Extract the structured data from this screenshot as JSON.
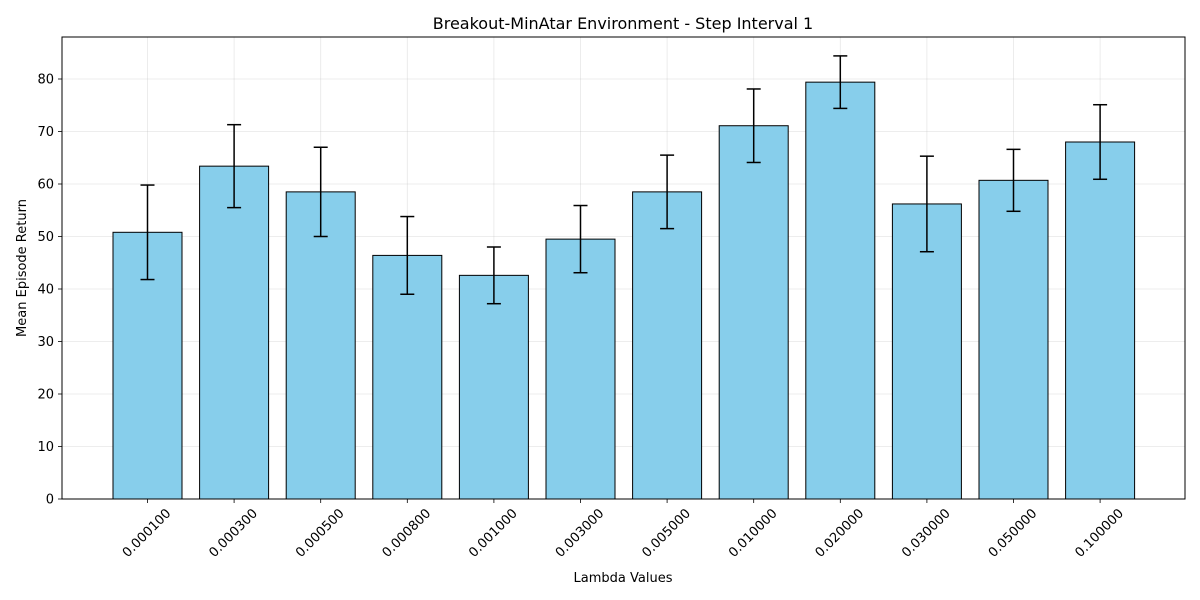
{
  "chart_data": {
    "type": "bar",
    "title": "Breakout-MinAtar Environment - Step Interval 1",
    "xlabel": "Lambda Values",
    "ylabel": "Mean Episode Return",
    "categories": [
      "0.000100",
      "0.000300",
      "0.000500",
      "0.000800",
      "0.001000",
      "0.003000",
      "0.005000",
      "0.010000",
      "0.020000",
      "0.030000",
      "0.050000",
      "0.100000"
    ],
    "values": [
      50.8,
      63.4,
      58.5,
      46.4,
      42.6,
      49.5,
      58.5,
      71.1,
      79.4,
      56.2,
      60.7,
      68.0
    ],
    "errors": [
      9.0,
      7.9,
      8.5,
      7.4,
      5.4,
      6.4,
      7.0,
      7.0,
      5.0,
      9.1,
      5.9,
      7.1
    ],
    "ylim": [
      0,
      88
    ],
    "yticks": [
      0,
      10,
      20,
      30,
      40,
      50,
      60,
      70,
      80
    ],
    "grid": true,
    "bar_color": "#87ceeb",
    "edge_color": "#000000"
  }
}
